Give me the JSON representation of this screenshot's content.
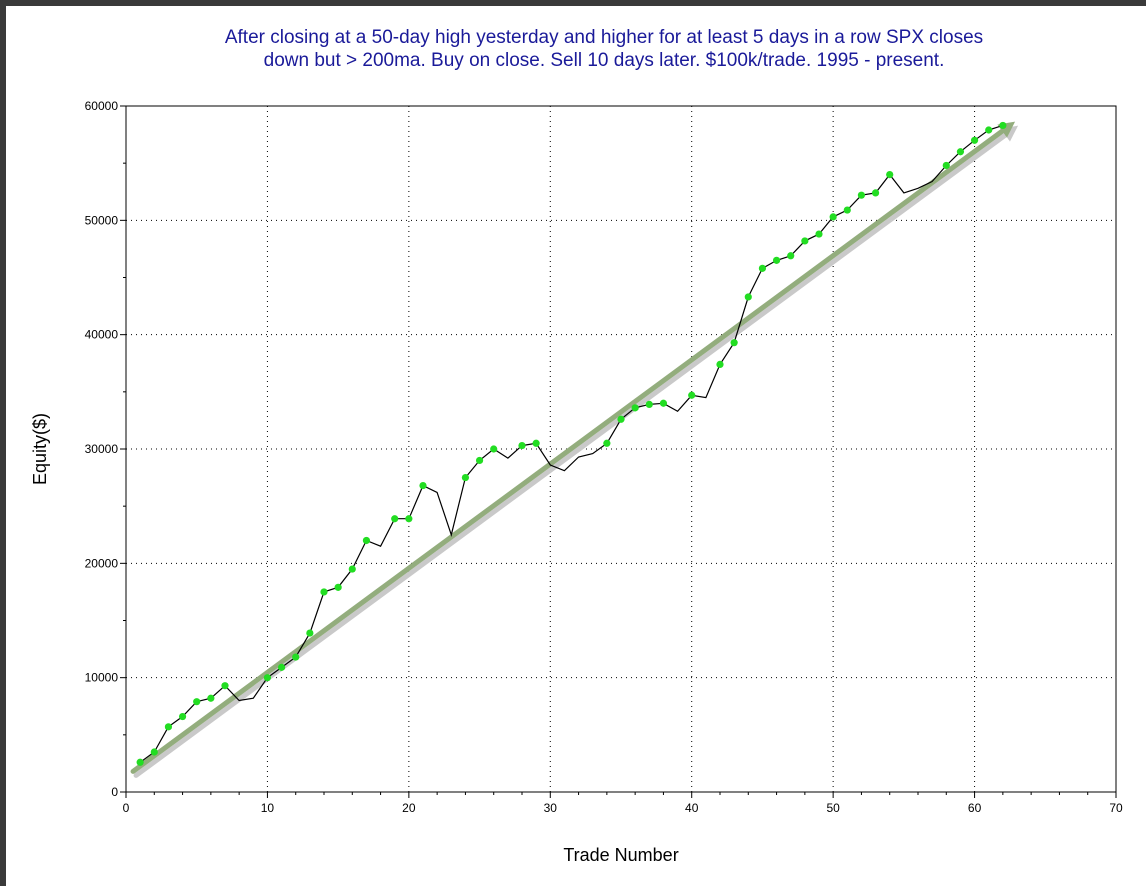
{
  "colors": {
    "title": "#1a1a99",
    "equity_line": "#000000",
    "win_marker": "#22dd22",
    "trend_arrow": "#93ad7d",
    "grid": "#000000",
    "background": "#ffffff",
    "border": "#3a3a3a"
  },
  "chart_data": {
    "type": "line",
    "title": [
      "After closing at a 50-day high yesterday and higher for at least 5 days in a row SPX closes",
      "down but > 200ma. Buy on close. Sell 10 days later. $100k/trade. 1995 - present."
    ],
    "xlabel": "Trade Number",
    "ylabel": "Equity($)",
    "xlim": [
      0,
      70
    ],
    "ylim": [
      0,
      60000
    ],
    "xticks": [
      0,
      10,
      20,
      30,
      40,
      50,
      60,
      70
    ],
    "yticks": [
      0,
      10000,
      20000,
      30000,
      40000,
      50000,
      60000
    ],
    "grid": true,
    "series": [
      {
        "x": [
          1,
          2,
          3,
          4,
          5,
          6,
          7,
          8,
          9,
          10,
          11,
          12,
          13,
          14,
          15,
          16,
          17,
          18,
          19,
          20,
          21,
          22,
          23,
          24,
          25,
          26,
          27,
          28,
          29,
          30,
          31,
          32,
          33,
          34,
          35,
          36,
          37,
          38,
          39,
          40,
          41,
          42,
          43,
          44,
          45,
          46,
          47,
          48,
          49,
          50,
          51,
          52,
          53,
          54,
          55,
          56,
          57,
          58,
          59,
          60,
          61,
          62
        ],
        "values": [
          2600,
          3500,
          5700,
          6600,
          7900,
          8200,
          9300,
          8000,
          8200,
          10000,
          10900,
          11800,
          13900,
          17500,
          17900,
          19500,
          22000,
          21500,
          23900,
          23900,
          26800,
          26200,
          22500,
          27500,
          29000,
          30000,
          29200,
          30300,
          30500,
          28600,
          28100,
          29300,
          29600,
          30500,
          32600,
          33600,
          33900,
          34000,
          33300,
          34700,
          34500,
          37400,
          39300,
          43300,
          45800,
          46500,
          46900,
          48200,
          48800,
          50300,
          50900,
          52200,
          52400,
          54000,
          52400,
          52800,
          53400,
          54800,
          56000,
          57000,
          57900,
          58300
        ],
        "wins": [
          true,
          true,
          true,
          true,
          true,
          true,
          true,
          false,
          false,
          true,
          true,
          true,
          true,
          true,
          true,
          true,
          true,
          false,
          true,
          true,
          true,
          false,
          false,
          true,
          true,
          true,
          false,
          true,
          true,
          false,
          false,
          false,
          false,
          true,
          true,
          true,
          true,
          true,
          false,
          true,
          false,
          true,
          true,
          true,
          true,
          true,
          true,
          true,
          true,
          true,
          true,
          true,
          true,
          true,
          false,
          false,
          false,
          true,
          true,
          true,
          true,
          true
        ]
      }
    ],
    "trendline": {
      "x": [
        0.5,
        62.5
      ],
      "y": [
        1800,
        58300
      ]
    }
  }
}
